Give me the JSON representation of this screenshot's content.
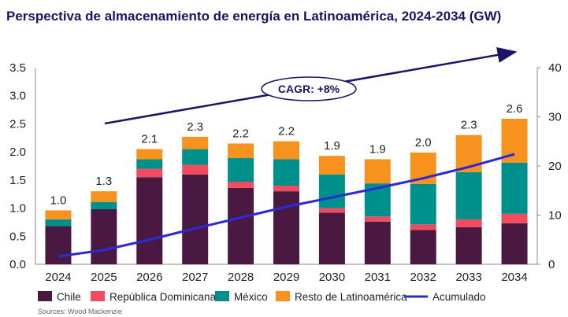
{
  "chart_data": {
    "type": "bar",
    "stacked": true,
    "title": "Perspectiva de almacenamiento de energía en Latinoamérica, 2024-2034 (GW)",
    "categories": [
      "2024",
      "2025",
      "2026",
      "2027",
      "2028",
      "2029",
      "2030",
      "2031",
      "2032",
      "2033",
      "2034"
    ],
    "series": [
      {
        "name": "Chile",
        "color": "#4a1942",
        "values": [
          0.68,
          0.98,
          1.55,
          1.6,
          1.36,
          1.3,
          0.92,
          0.76,
          0.61,
          0.66,
          0.73
        ]
      },
      {
        "name": "República Dominicana",
        "color": "#f24b5f",
        "values": [
          0.0,
          0.0,
          0.15,
          0.17,
          0.11,
          0.1,
          0.08,
          0.09,
          0.1,
          0.14,
          0.17
        ]
      },
      {
        "name": "México",
        "color": "#00908c",
        "values": [
          0.12,
          0.13,
          0.17,
          0.28,
          0.42,
          0.47,
          0.6,
          0.59,
          0.72,
          0.84,
          0.91
        ]
      },
      {
        "name": "Resto de Latinoamérica",
        "color": "#f7921e",
        "values": [
          0.16,
          0.19,
          0.18,
          0.22,
          0.26,
          0.32,
          0.33,
          0.43,
          0.56,
          0.66,
          0.78
        ]
      }
    ],
    "totals_labels": [
      "1.0",
      "1.3",
      "2.1",
      "2.3",
      "2.2",
      "2.2",
      "1.9",
      "1.9",
      "2.0",
      "2.3",
      "2.6"
    ],
    "line_series": {
      "name": "Acumulado",
      "color": "#2b2bd6",
      "axis": "right",
      "values": [
        1.6,
        2.9,
        5.0,
        7.3,
        9.5,
        11.7,
        13.6,
        15.5,
        17.5,
        19.8,
        22.4
      ]
    },
    "y_left": {
      "min": 0,
      "max": 3.5,
      "ticks": [
        "0.0",
        "0.5",
        "1.0",
        "1.5",
        "2.0",
        "2.5",
        "3.0",
        "3.5"
      ]
    },
    "y_right": {
      "min": 0,
      "max": 40,
      "ticks": [
        "0",
        "10",
        "20",
        "30",
        "40"
      ]
    },
    "annotation": "CAGR: +8%",
    "legend_position": "bottom",
    "source": "Sources: Wood Mackenzie"
  }
}
